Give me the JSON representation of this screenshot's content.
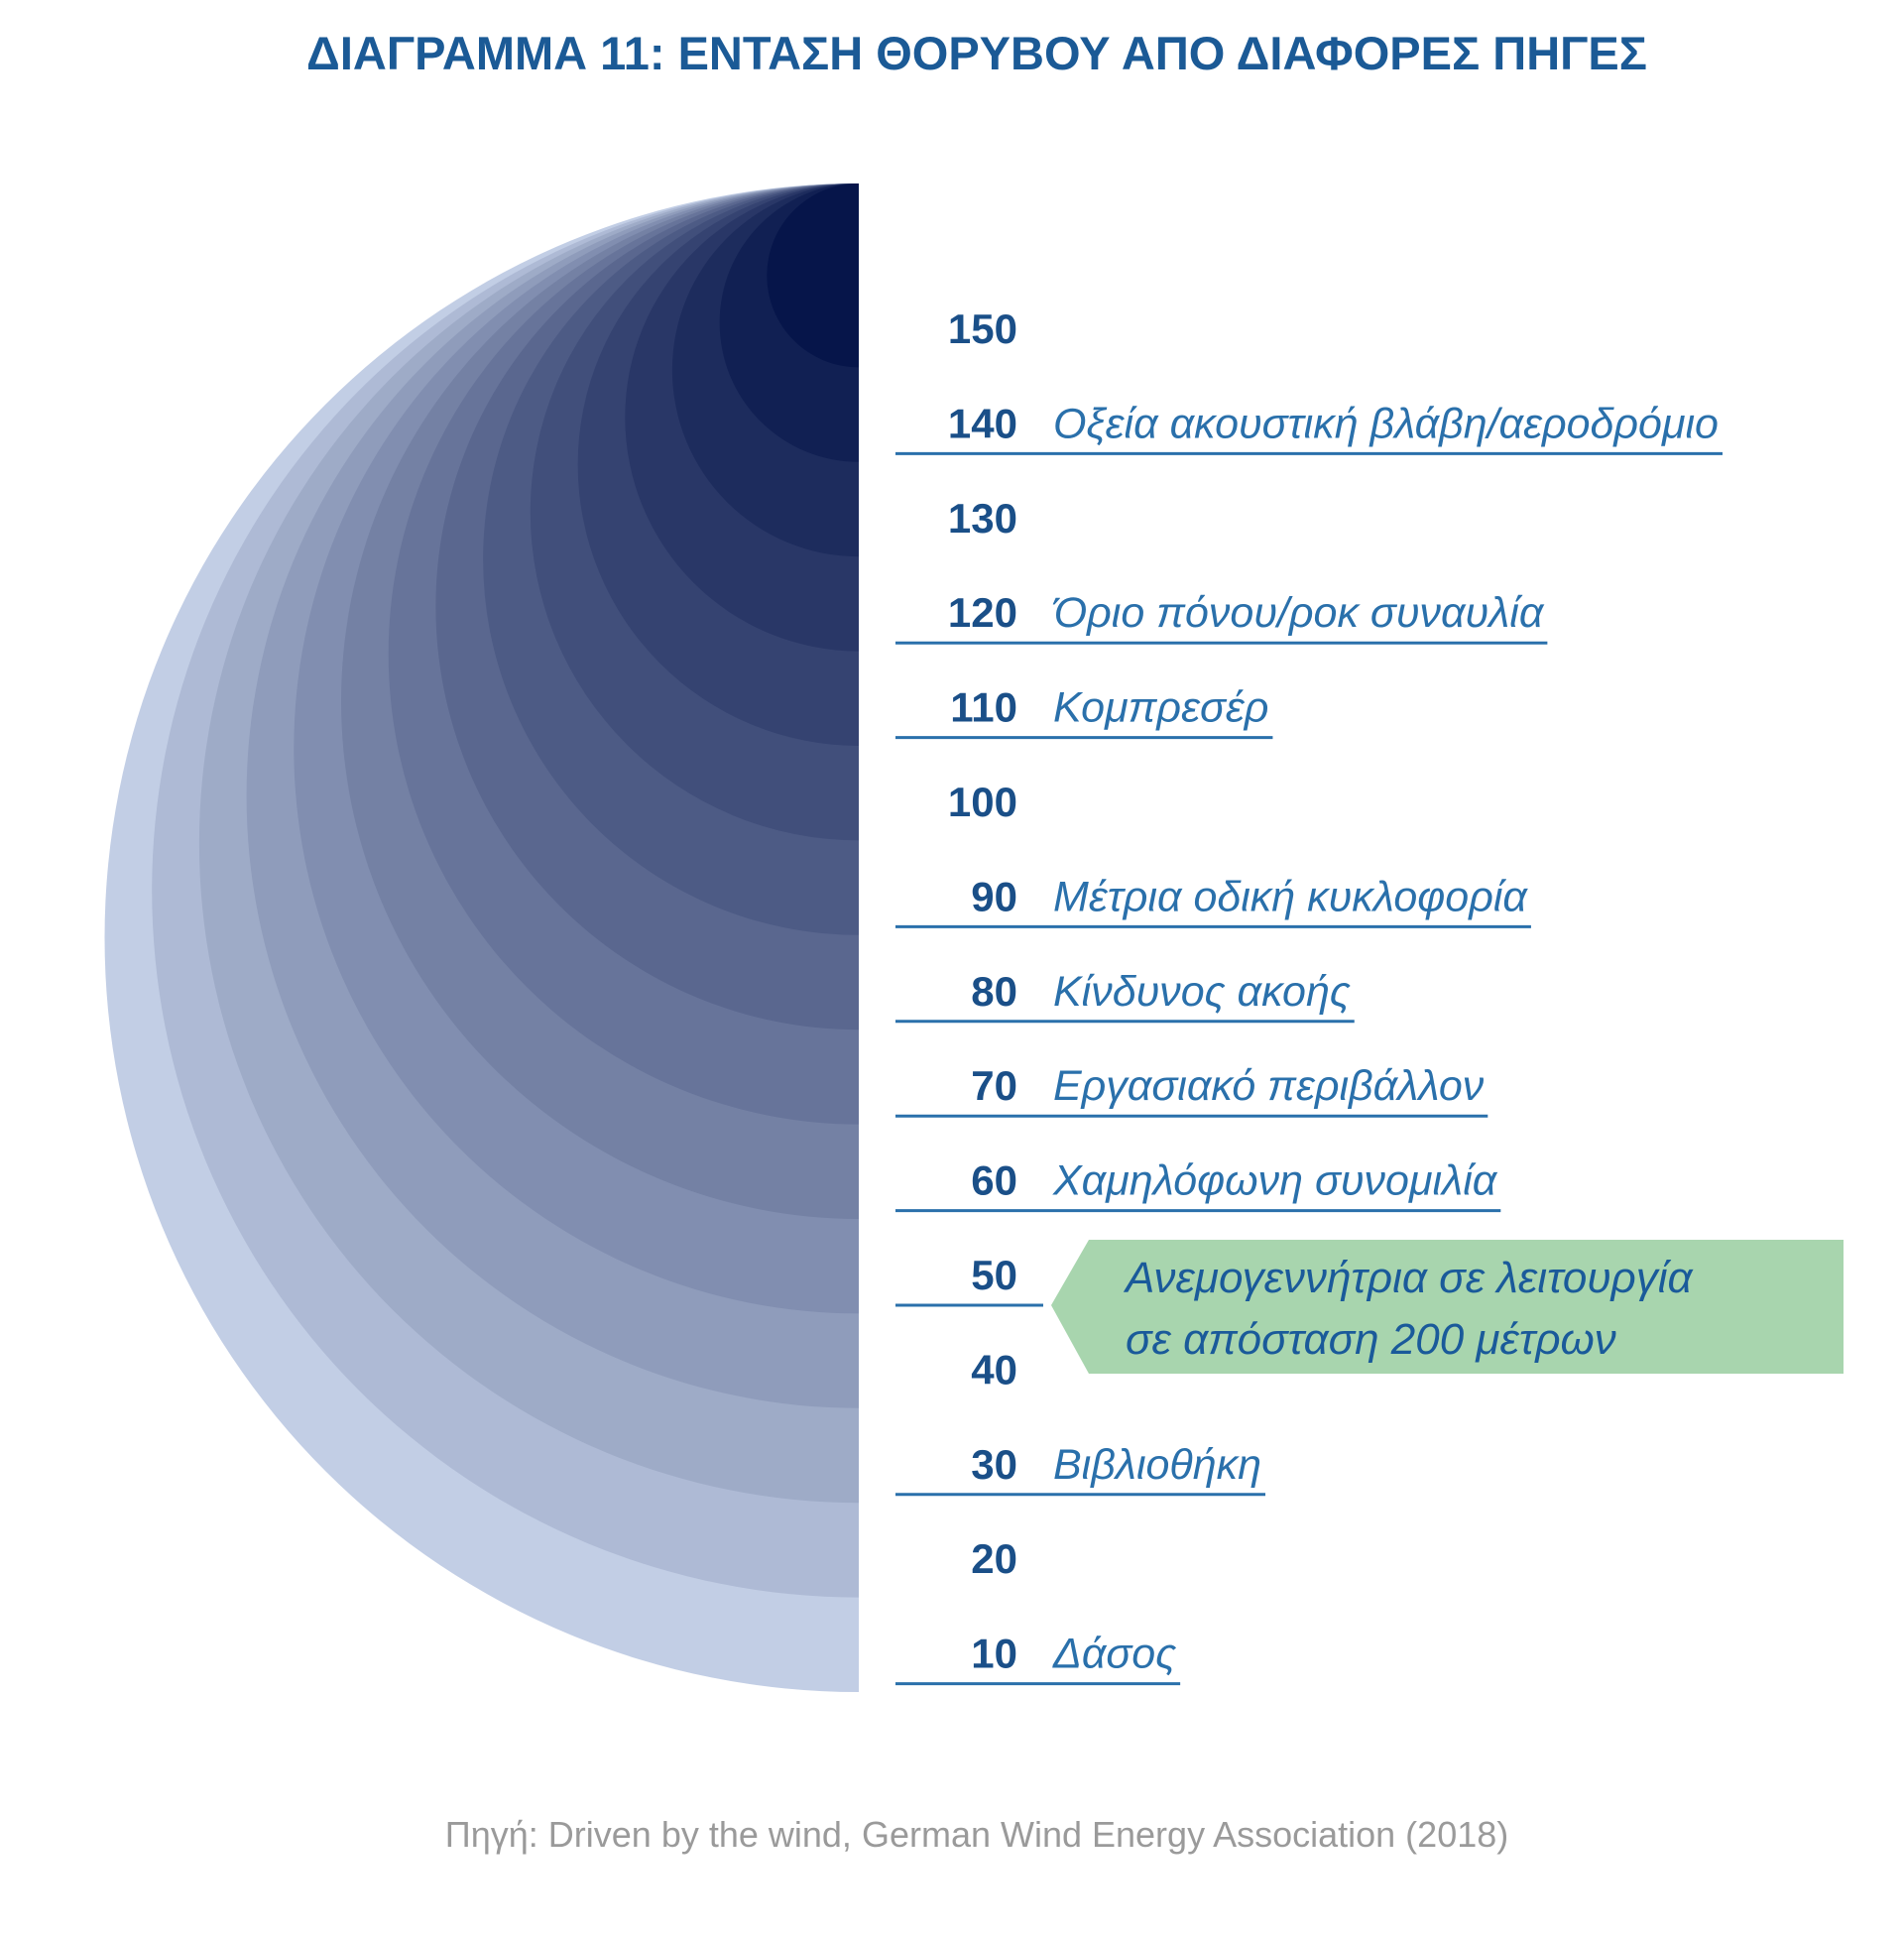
{
  "chart_data": {
    "type": "other",
    "title": "ΔΙΑΓΡΑΜΜΑ 11: ΕΝΤΑΣΗ ΘΟΡΥΒΟΥ ΑΠΟ ΔΙΑΦΟΡΕΣ ΠΗΓΕΣ",
    "scale": [
      {
        "value": "150",
        "label": ""
      },
      {
        "value": "140",
        "label": "Οξεία ακουστική βλάβη/αεροδρόμιο"
      },
      {
        "value": "130",
        "label": ""
      },
      {
        "value": "120",
        "label": "Όριο πόνου/ροκ συναυλία"
      },
      {
        "value": "110",
        "label": "Κομπρεσέρ"
      },
      {
        "value": "100",
        "label": ""
      },
      {
        "value": "90",
        "label": "Μέτρια οδική κυκλοφορία"
      },
      {
        "value": "80",
        "label": "Κίνδυνος ακοής"
      },
      {
        "value": "70",
        "label": "Εργασιακό περιβάλλον"
      },
      {
        "value": "60",
        "label": "Χαμηλόφωνη συνομιλία"
      },
      {
        "value": "50",
        "label": ""
      },
      {
        "value": "40",
        "label": ""
      },
      {
        "value": "30",
        "label": "Βιβλιοθήκη"
      },
      {
        "value": "20",
        "label": ""
      },
      {
        "value": "10",
        "label": "Δάσος"
      }
    ],
    "highlight": {
      "value": "50",
      "line1": "Ανεμογεννήτρια σε λειτουργία",
      "line2": "σε απόσταση 200 μέτρων",
      "color": "#a8d5ae"
    },
    "colors": {
      "lightest": "#c2cee5",
      "darkest": "#06154a",
      "numbers": "#1a4f88",
      "labels": "#2a70ab",
      "title": "#1b5a96"
    }
  },
  "source": "Πηγή: Driven by the wind, German Wind Energy Association (2018)"
}
